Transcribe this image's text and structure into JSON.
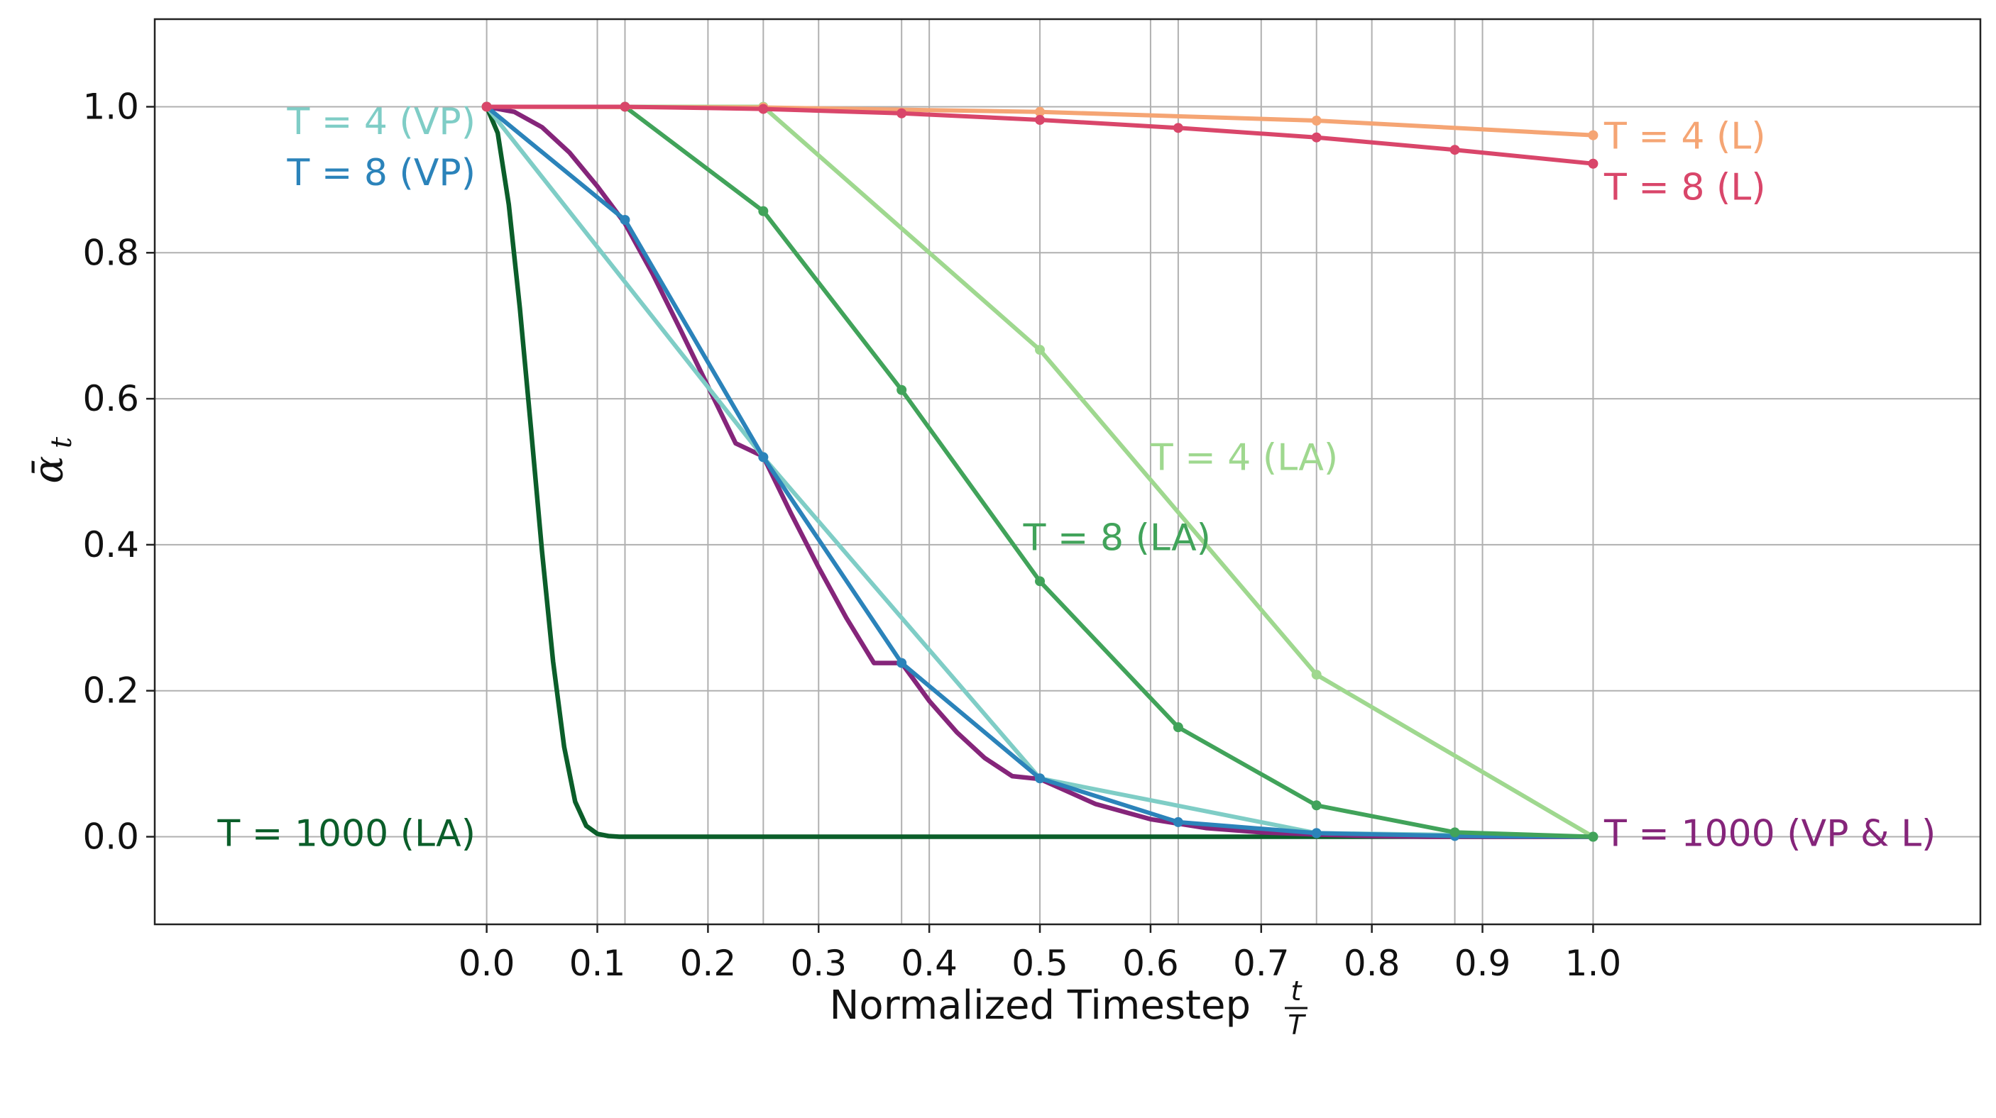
{
  "chart_data": {
    "type": "line",
    "xlabel": "Normalized Timestep",
    "xlabel_fraction": {
      "numerator": "t",
      "denominator": "T"
    },
    "ylabel": "ᾱ",
    "ylabel_subscript": "t",
    "xlim": [
      -0.3,
      1.35
    ],
    "ylim": [
      -0.12,
      1.12
    ],
    "grid": true,
    "x_ticks": [
      {
        "value": 0.0,
        "label": "0.0"
      },
      {
        "value": 0.1,
        "label": "0.1"
      },
      {
        "value": 0.2,
        "label": "0.2"
      },
      {
        "value": 0.3,
        "label": "0.3"
      },
      {
        "value": 0.4,
        "label": "0.4"
      },
      {
        "value": 0.5,
        "label": "0.5"
      },
      {
        "value": 0.6,
        "label": "0.6"
      },
      {
        "value": 0.7,
        "label": "0.7"
      },
      {
        "value": 0.8,
        "label": "0.8"
      },
      {
        "value": 0.9,
        "label": "0.9"
      },
      {
        "value": 1.0,
        "label": "1.0"
      }
    ],
    "x_gridlines": [
      0.0,
      0.1,
      0.125,
      0.2,
      0.25,
      0.3,
      0.375,
      0.4,
      0.5,
      0.6,
      0.625,
      0.7,
      0.75,
      0.8,
      0.875,
      0.9,
      1.0
    ],
    "y_ticks": [
      {
        "value": 0.0,
        "label": "0.0"
      },
      {
        "value": 0.2,
        "label": "0.2"
      },
      {
        "value": 0.4,
        "label": "0.4"
      },
      {
        "value": 0.6,
        "label": "0.6"
      },
      {
        "value": 0.8,
        "label": "0.8"
      },
      {
        "value": 1.0,
        "label": "1.0"
      }
    ],
    "series": [
      {
        "name": "T = 1000 (LA)",
        "color": "#0b5e2a",
        "markers": false,
        "x": [
          0.0,
          0.01,
          0.02,
          0.03,
          0.04,
          0.05,
          0.06,
          0.07,
          0.08,
          0.09,
          0.1,
          0.11,
          0.12,
          0.14,
          0.2,
          0.4,
          0.6,
          0.8,
          1.0
        ],
        "y": [
          1.0,
          0.964,
          0.866,
          0.724,
          0.56,
          0.391,
          0.24,
          0.123,
          0.048,
          0.015,
          0.004,
          0.001,
          0.0,
          0.0,
          0.0,
          0.0,
          0.0,
          0.0,
          0.0
        ]
      },
      {
        "name": "T = 1000 (VP & L)",
        "color": "#85257a",
        "markers": false,
        "x": [
          0.0,
          0.025,
          0.05,
          0.075,
          0.1,
          0.125,
          0.15,
          0.175,
          0.2,
          0.225,
          0.25,
          0.275,
          0.3,
          0.325,
          0.35,
          0.375,
          0.4,
          0.425,
          0.45,
          0.475,
          0.5,
          0.55,
          0.6,
          0.65,
          0.7,
          0.75,
          0.8,
          0.85,
          0.9,
          0.95,
          1.0
        ],
        "y": [
          1.0,
          0.993,
          0.972,
          0.937,
          0.891,
          0.84,
          0.771,
          0.695,
          0.617,
          0.539,
          0.521,
          0.443,
          0.369,
          0.3,
          0.238,
          0.238,
          0.186,
          0.143,
          0.108,
          0.083,
          0.079,
          0.045,
          0.024,
          0.012,
          0.006,
          0.003,
          0.001,
          0.0,
          0.0,
          0.0,
          0.0
        ]
      },
      {
        "name": "T = 4 (VP)",
        "color": "#7fcdc6",
        "markers": true,
        "x": [
          0.0,
          0.25,
          0.5,
          0.75,
          1.0
        ],
        "y": [
          1.0,
          0.52,
          0.08,
          0.005,
          0.0
        ]
      },
      {
        "name": "T = 8 (VP)",
        "color": "#2b83ba",
        "markers": true,
        "x": [
          0.0,
          0.125,
          0.25,
          0.375,
          0.5,
          0.625,
          0.75,
          0.875,
          1.0
        ],
        "y": [
          1.0,
          0.845,
          0.52,
          0.238,
          0.08,
          0.02,
          0.005,
          0.001,
          0.0
        ]
      },
      {
        "name": "T = 4 (LA)",
        "color": "#9fd88f",
        "markers": true,
        "x": [
          0.0,
          0.25,
          0.5,
          0.75,
          1.0
        ],
        "y": [
          1.0,
          1.0,
          0.667,
          0.222,
          0.0
        ]
      },
      {
        "name": "T = 8 (LA)",
        "color": "#41a35a",
        "markers": true,
        "x": [
          0.0,
          0.125,
          0.25,
          0.375,
          0.5,
          0.625,
          0.75,
          0.875,
          1.0
        ],
        "y": [
          1.0,
          1.0,
          0.857,
          0.612,
          0.35,
          0.15,
          0.043,
          0.006,
          0.0
        ]
      },
      {
        "name": "T = 4 (L)",
        "color": "#f5a574",
        "markers": true,
        "x": [
          0.0,
          0.25,
          0.5,
          0.75,
          1.0
        ],
        "y": [
          1.0,
          0.999,
          0.993,
          0.981,
          0.961
        ]
      },
      {
        "name": "T = 8 (L)",
        "color": "#d9466a",
        "markers": true,
        "x": [
          0.0,
          0.125,
          0.25,
          0.375,
          0.5,
          0.625,
          0.75,
          0.875,
          1.0
        ],
        "y": [
          1.0,
          1.0,
          0.997,
          0.991,
          0.982,
          0.971,
          0.958,
          0.941,
          0.922
        ]
      }
    ],
    "annotations": [
      {
        "text": "T = 4 (VP)",
        "color": "#7fcdc6",
        "anchor": "end",
        "x": -0.01,
        "y": 0.98
      },
      {
        "text": "T = 8 (VP)",
        "color": "#2b83ba",
        "anchor": "end",
        "x": -0.01,
        "y": 0.91
      },
      {
        "text": "T = 1000 (LA)",
        "color": "#0b5e2a",
        "anchor": "end",
        "x": -0.01,
        "y": 0.005
      },
      {
        "text": "T = 4 (L)",
        "color": "#f5a574",
        "anchor": "start",
        "x": 1.01,
        "y": 0.96
      },
      {
        "text": "T = 8 (L)",
        "color": "#d9466a",
        "anchor": "start",
        "x": 1.01,
        "y": 0.89
      },
      {
        "text": "T = 1000 (VP & L)",
        "color": "#85257a",
        "anchor": "start",
        "x": 1.01,
        "y": 0.005
      },
      {
        "text": "T = 4 (LA)",
        "color": "#9fd88f",
        "anchor": "start",
        "x": 0.6,
        "y": 0.52
      },
      {
        "text": "T = 8 (LA)",
        "color": "#41a35a",
        "anchor": "start",
        "x": 0.485,
        "y": 0.41
      }
    ]
  }
}
